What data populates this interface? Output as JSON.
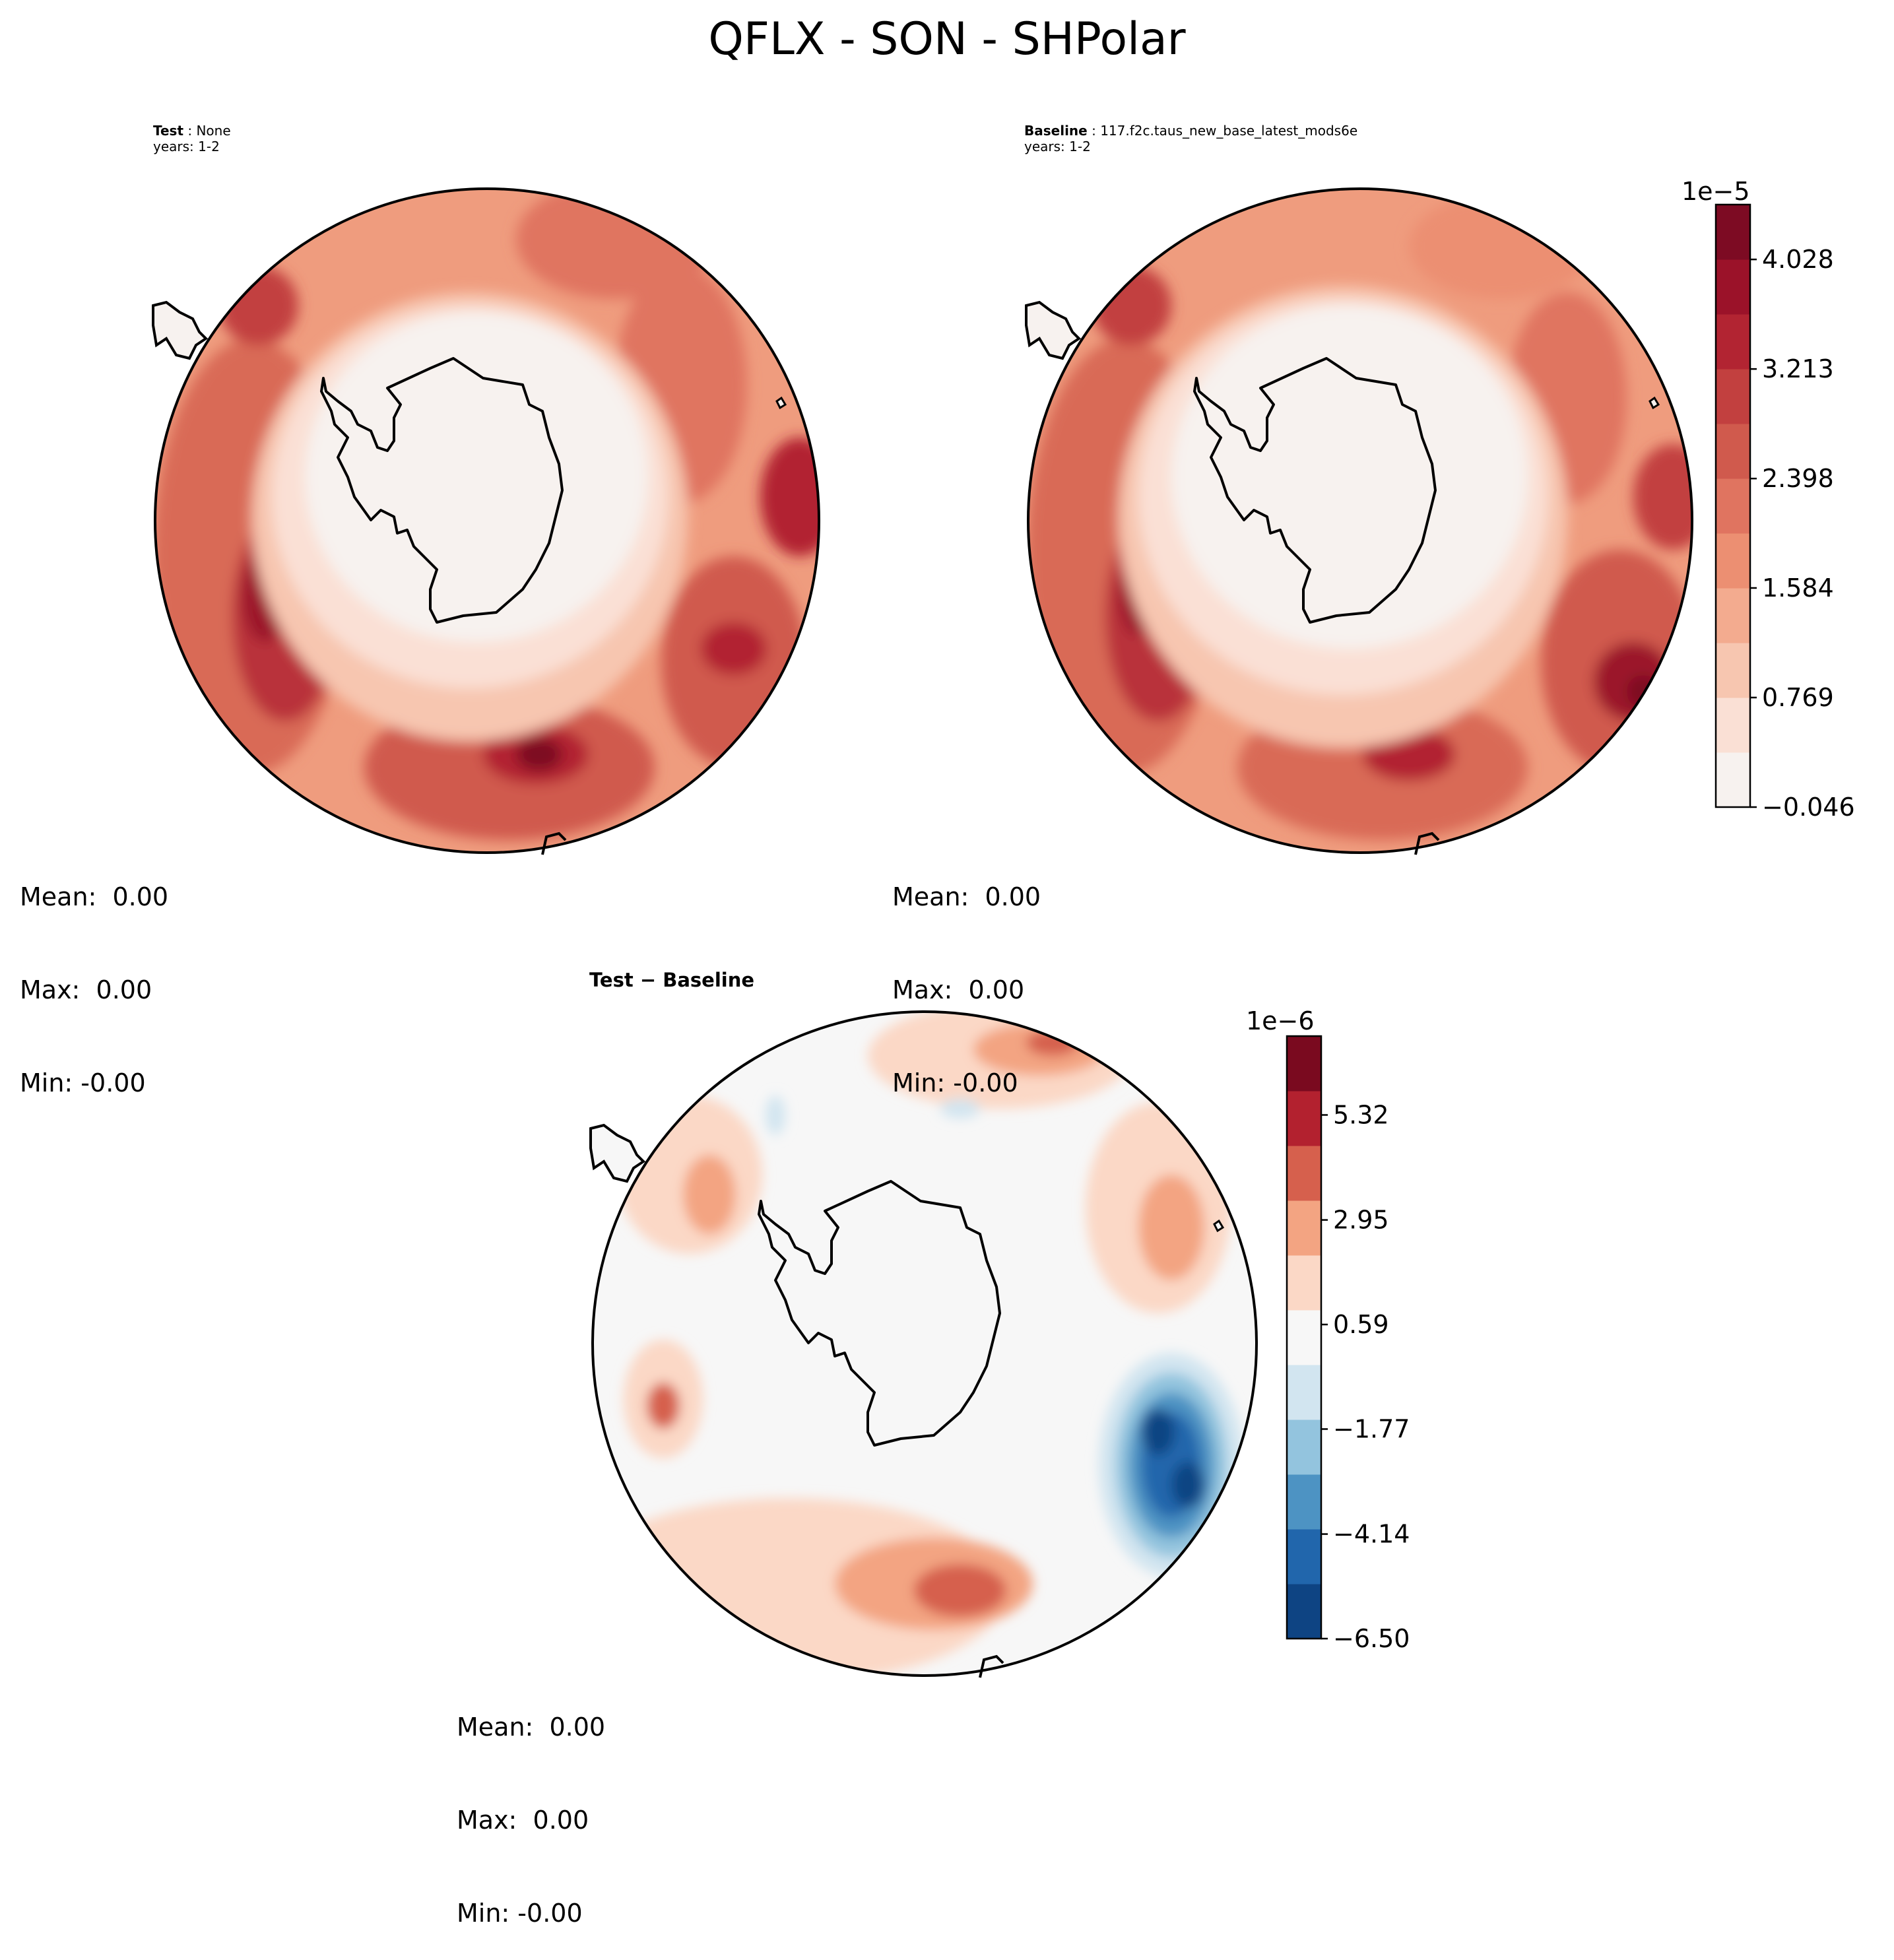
{
  "figure": {
    "title": "QFLX - SON - SHPolar"
  },
  "panels": {
    "test": {
      "label_bold": "Test",
      "label_sep": " : ",
      "label_value": "None",
      "years": "years: 1-2",
      "stats": {
        "mean": "Mean:  0.00",
        "max": "Max:  0.00",
        "min": "Min: -0.00"
      }
    },
    "baseline": {
      "label_bold": "Baseline",
      "label_sep": " : ",
      "label_value": "117.f2c.taus_new_base_latest_mods6e",
      "years": "years: 1-2",
      "stats": {
        "mean": "Mean:  0.00",
        "max": "Max:  0.00",
        "min": "Min: -0.00"
      }
    },
    "diff": {
      "label": "Test − Baseline",
      "stats": {
        "mean": "Mean:  0.00",
        "max": "Max:  0.00",
        "min": "Min: -0.00"
      }
    }
  },
  "chart_data": [
    {
      "type": "heatmap",
      "projection": "south-polar-stereographic",
      "panel": "test",
      "title": "Test : None",
      "colormap": "Reds",
      "colorbar_shared_with": "baseline"
    },
    {
      "type": "heatmap",
      "projection": "south-polar-stereographic",
      "panel": "baseline",
      "title": "Baseline : 117.f2c.taus_new_base_latest_mods6e",
      "colormap": "Reds",
      "colorbar": {
        "exponent": "1e−5",
        "range": [
          -0.046,
          4.436
        ],
        "tick_values": [
          -0.046,
          0.769,
          1.584,
          2.398,
          3.213,
          4.028
        ],
        "tick_labels": [
          "−0.046",
          "0.769",
          "1.584",
          "2.398",
          "3.213",
          "4.028"
        ],
        "levels": 11,
        "colors": [
          "#f7f2ef",
          "#fae0d5",
          "#f7c6b0",
          "#f3ab8f",
          "#ec8f72",
          "#e07460",
          "#d05a4d",
          "#c2403f",
          "#b22432",
          "#9b1229",
          "#7d0b23"
        ]
      }
    },
    {
      "type": "heatmap",
      "projection": "south-polar-stereographic",
      "panel": "diff",
      "title": "Test − Baseline",
      "colormap": "RdBu_r",
      "colorbar": {
        "exponent": "1e−6",
        "range": [
          -6.5,
          7.1
        ],
        "tick_values": [
          -6.5,
          -4.14,
          -1.77,
          0.59,
          2.95,
          5.32
        ],
        "tick_labels": [
          "−6.50",
          "−4.14",
          "−1.77",
          "0.59",
          "2.95",
          "5.32"
        ],
        "levels": 11,
        "colors": [
          "#0e4483",
          "#2166ac",
          "#4d93c3",
          "#93c4de",
          "#d2e5f0",
          "#f7f7f7",
          "#fbd8c6",
          "#f3a482",
          "#d6604d",
          "#b3212f",
          "#7a0a1f"
        ]
      }
    }
  ]
}
